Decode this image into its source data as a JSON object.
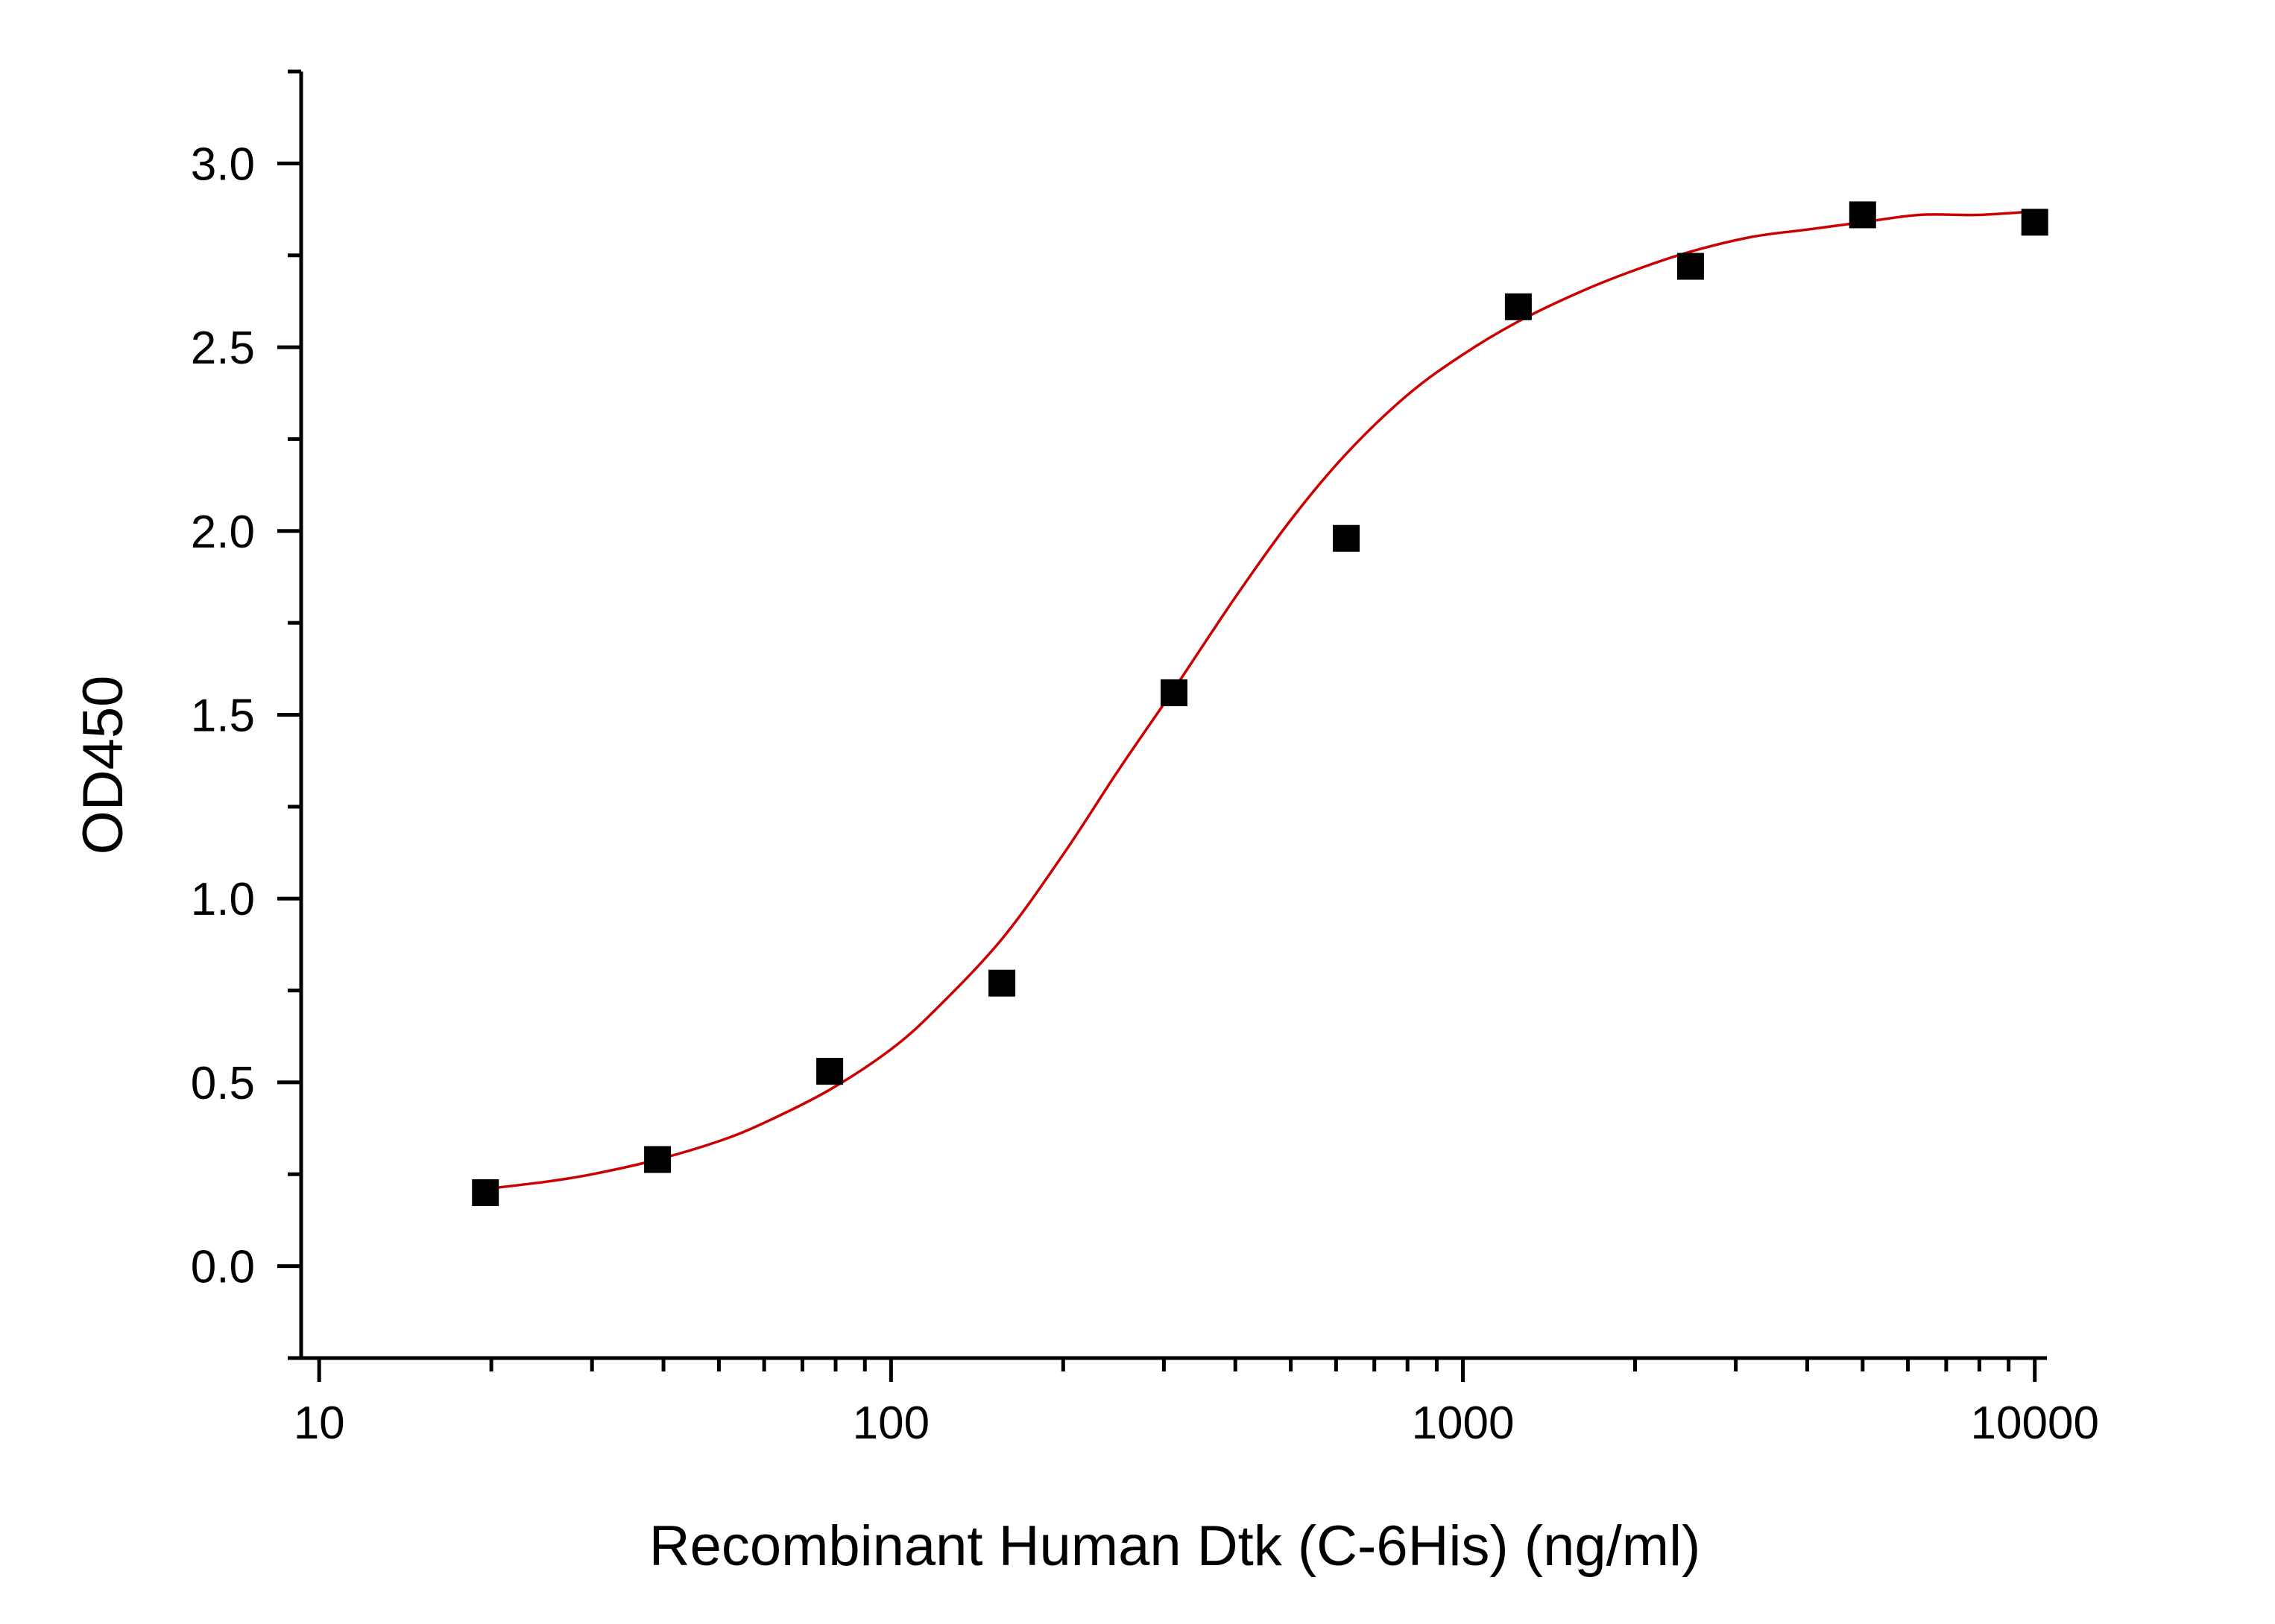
{
  "chart_data": {
    "type": "scatter",
    "title": "",
    "xlabel": "Recombinant Human Dtk (C-6His) (ng/ml)",
    "ylabel": "OD450",
    "x_scale": "log",
    "xlim": [
      9.3,
      10500
    ],
    "ylim": [
      -0.25,
      3.25
    ],
    "x_ticks": [
      10,
      100,
      1000,
      10000
    ],
    "x_tick_labels": [
      "10",
      "100",
      "1000",
      "10000"
    ],
    "y_ticks": [
      0.0,
      0.5,
      1.0,
      1.5,
      2.0,
      2.5,
      3.0
    ],
    "y_tick_labels": [
      "0.0",
      "0.5",
      "1.0",
      "1.5",
      "2.0",
      "2.5",
      "3.0"
    ],
    "grid": false,
    "legend": "none",
    "series": [
      {
        "marker": "square",
        "color": "#000000",
        "x": [
          19.53,
          39.06,
          78.13,
          156.25,
          312.5,
          625,
          1250,
          2500,
          5000,
          10000
        ],
        "y": [
          0.2,
          0.29,
          0.53,
          0.77,
          1.56,
          1.98,
          2.61,
          2.72,
          2.86,
          2.84
        ]
      },
      {
        "kind": "fit_curve",
        "color": "#cc0000",
        "x": [
          19.53,
          25,
          30,
          39.06,
          50,
          60,
          78.13,
          100,
          120,
          156.25,
          200,
          250,
          312.5,
          400,
          500,
          625,
          800,
          1000,
          1250,
          1600,
          2000,
          2500,
          3200,
          4000,
          5000,
          6300,
          8000,
          10000
        ],
        "y": [
          0.21,
          0.23,
          0.25,
          0.29,
          0.34,
          0.39,
          0.48,
          0.59,
          0.7,
          0.89,
          1.12,
          1.35,
          1.57,
          1.82,
          2.03,
          2.21,
          2.37,
          2.48,
          2.57,
          2.65,
          2.71,
          2.76,
          2.8,
          2.82,
          2.84,
          2.86,
          2.86,
          2.87
        ]
      }
    ]
  }
}
